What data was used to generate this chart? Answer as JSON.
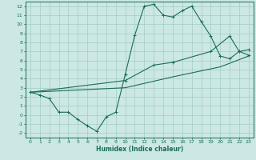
{
  "bg_color": "#cce8e4",
  "grid_color": "#aacfcb",
  "line_color": "#1a6b5e",
  "xlim": [
    -0.5,
    23.5
  ],
  "ylim": [
    -2.5,
    12.5
  ],
  "xticks": [
    0,
    1,
    2,
    3,
    4,
    5,
    6,
    7,
    8,
    9,
    10,
    11,
    12,
    13,
    14,
    15,
    16,
    17,
    18,
    19,
    20,
    21,
    22,
    23
  ],
  "yticks": [
    -2,
    -1,
    0,
    1,
    2,
    3,
    4,
    5,
    6,
    7,
    8,
    9,
    10,
    11,
    12
  ],
  "line1_x": [
    0,
    1,
    2,
    3,
    4,
    5,
    6,
    7,
    8,
    9,
    10,
    11,
    12,
    13,
    14,
    15,
    16,
    17,
    18,
    19,
    20,
    21,
    22,
    23
  ],
  "line1_y": [
    2.5,
    2.2,
    1.8,
    0.3,
    0.3,
    -0.5,
    -1.2,
    -1.8,
    -0.2,
    0.3,
    4.5,
    8.8,
    12.0,
    12.2,
    11.0,
    10.8,
    11.5,
    12.0,
    10.3,
    8.7,
    6.5,
    6.2,
    7.0,
    6.6
  ],
  "line2_x": [
    0,
    10,
    13,
    15,
    19,
    21,
    22,
    23
  ],
  "line2_y": [
    2.5,
    3.8,
    5.5,
    5.8,
    7.0,
    8.7,
    7.0,
    7.2
  ],
  "line3_x": [
    0,
    10,
    15,
    20,
    23
  ],
  "line3_y": [
    2.5,
    3.0,
    4.2,
    5.3,
    6.5
  ],
  "xlabel": "Humidex (Indice chaleur)"
}
